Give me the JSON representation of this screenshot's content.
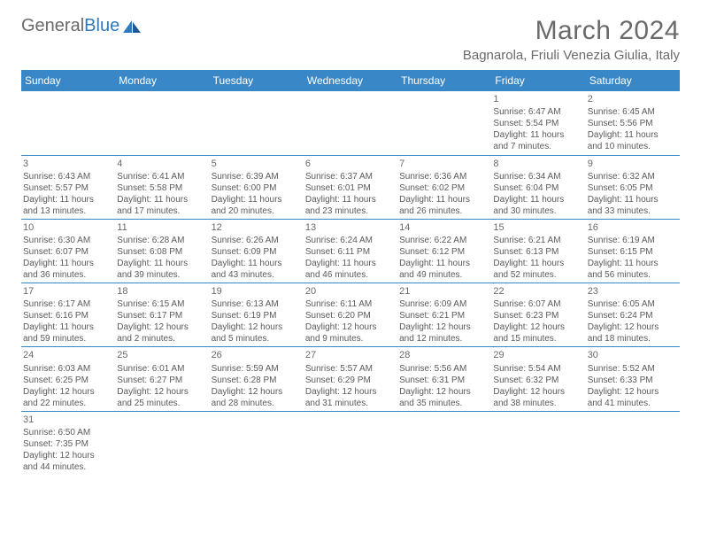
{
  "brand": {
    "part1": "General",
    "part2": "Blue"
  },
  "title": "March 2024",
  "location": "Bagnarola, Friuli Venezia Giulia, Italy",
  "colors": {
    "header_bg": "#3a87c7",
    "text": "#5a5a5a",
    "rule": "#3a87c7"
  },
  "weekdays": [
    "Sunday",
    "Monday",
    "Tuesday",
    "Wednesday",
    "Thursday",
    "Friday",
    "Saturday"
  ],
  "grid": [
    [
      null,
      null,
      null,
      null,
      null,
      {
        "n": "1",
        "sr": "6:47 AM",
        "ss": "5:54 PM",
        "dh": 11,
        "dm": 7
      },
      {
        "n": "2",
        "sr": "6:45 AM",
        "ss": "5:56 PM",
        "dh": 11,
        "dm": 10
      }
    ],
    [
      {
        "n": "3",
        "sr": "6:43 AM",
        "ss": "5:57 PM",
        "dh": 11,
        "dm": 13
      },
      {
        "n": "4",
        "sr": "6:41 AM",
        "ss": "5:58 PM",
        "dh": 11,
        "dm": 17
      },
      {
        "n": "5",
        "sr": "6:39 AM",
        "ss": "6:00 PM",
        "dh": 11,
        "dm": 20
      },
      {
        "n": "6",
        "sr": "6:37 AM",
        "ss": "6:01 PM",
        "dh": 11,
        "dm": 23
      },
      {
        "n": "7",
        "sr": "6:36 AM",
        "ss": "6:02 PM",
        "dh": 11,
        "dm": 26
      },
      {
        "n": "8",
        "sr": "6:34 AM",
        "ss": "6:04 PM",
        "dh": 11,
        "dm": 30
      },
      {
        "n": "9",
        "sr": "6:32 AM",
        "ss": "6:05 PM",
        "dh": 11,
        "dm": 33
      }
    ],
    [
      {
        "n": "10",
        "sr": "6:30 AM",
        "ss": "6:07 PM",
        "dh": 11,
        "dm": 36
      },
      {
        "n": "11",
        "sr": "6:28 AM",
        "ss": "6:08 PM",
        "dh": 11,
        "dm": 39
      },
      {
        "n": "12",
        "sr": "6:26 AM",
        "ss": "6:09 PM",
        "dh": 11,
        "dm": 43
      },
      {
        "n": "13",
        "sr": "6:24 AM",
        "ss": "6:11 PM",
        "dh": 11,
        "dm": 46
      },
      {
        "n": "14",
        "sr": "6:22 AM",
        "ss": "6:12 PM",
        "dh": 11,
        "dm": 49
      },
      {
        "n": "15",
        "sr": "6:21 AM",
        "ss": "6:13 PM",
        "dh": 11,
        "dm": 52
      },
      {
        "n": "16",
        "sr": "6:19 AM",
        "ss": "6:15 PM",
        "dh": 11,
        "dm": 56
      }
    ],
    [
      {
        "n": "17",
        "sr": "6:17 AM",
        "ss": "6:16 PM",
        "dh": 11,
        "dm": 59
      },
      {
        "n": "18",
        "sr": "6:15 AM",
        "ss": "6:17 PM",
        "dh": 12,
        "dm": 2
      },
      {
        "n": "19",
        "sr": "6:13 AM",
        "ss": "6:19 PM",
        "dh": 12,
        "dm": 5
      },
      {
        "n": "20",
        "sr": "6:11 AM",
        "ss": "6:20 PM",
        "dh": 12,
        "dm": 9
      },
      {
        "n": "21",
        "sr": "6:09 AM",
        "ss": "6:21 PM",
        "dh": 12,
        "dm": 12
      },
      {
        "n": "22",
        "sr": "6:07 AM",
        "ss": "6:23 PM",
        "dh": 12,
        "dm": 15
      },
      {
        "n": "23",
        "sr": "6:05 AM",
        "ss": "6:24 PM",
        "dh": 12,
        "dm": 18
      }
    ],
    [
      {
        "n": "24",
        "sr": "6:03 AM",
        "ss": "6:25 PM",
        "dh": 12,
        "dm": 22
      },
      {
        "n": "25",
        "sr": "6:01 AM",
        "ss": "6:27 PM",
        "dh": 12,
        "dm": 25
      },
      {
        "n": "26",
        "sr": "5:59 AM",
        "ss": "6:28 PM",
        "dh": 12,
        "dm": 28
      },
      {
        "n": "27",
        "sr": "5:57 AM",
        "ss": "6:29 PM",
        "dh": 12,
        "dm": 31
      },
      {
        "n": "28",
        "sr": "5:56 AM",
        "ss": "6:31 PM",
        "dh": 12,
        "dm": 35
      },
      {
        "n": "29",
        "sr": "5:54 AM",
        "ss": "6:32 PM",
        "dh": 12,
        "dm": 38
      },
      {
        "n": "30",
        "sr": "5:52 AM",
        "ss": "6:33 PM",
        "dh": 12,
        "dm": 41
      }
    ],
    [
      {
        "n": "31",
        "sr": "6:50 AM",
        "ss": "7:35 PM",
        "dh": 12,
        "dm": 44
      },
      null,
      null,
      null,
      null,
      null,
      null
    ]
  ],
  "labels": {
    "sunrise": "Sunrise:",
    "sunset": "Sunset:",
    "daylight": "Daylight:",
    "hours": "hours",
    "and": "and",
    "minutes": "minutes."
  }
}
